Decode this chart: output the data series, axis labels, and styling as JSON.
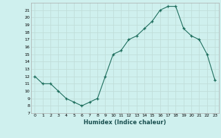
{
  "x": [
    0,
    1,
    2,
    3,
    4,
    5,
    6,
    7,
    8,
    9,
    10,
    11,
    12,
    13,
    14,
    15,
    16,
    17,
    18,
    19,
    20,
    21,
    22,
    23
  ],
  "y": [
    12,
    11,
    11,
    10,
    9,
    8.5,
    8,
    8.5,
    9,
    12,
    15,
    15.5,
    17,
    17.5,
    18.5,
    19.5,
    21,
    21.5,
    21.5,
    18.5,
    17.5,
    17,
    15,
    11.5
  ],
  "line_color": "#1a6b5a",
  "marker_color": "#1a6b5a",
  "bg_color": "#cff0ee",
  "grid_color": "#c0ddd9",
  "xlabel": "Humidex (Indice chaleur)",
  "ylim": [
    7,
    22
  ],
  "xlim": [
    -0.5,
    23.5
  ],
  "yticks": [
    7,
    8,
    9,
    10,
    11,
    12,
    13,
    14,
    15,
    16,
    17,
    18,
    19,
    20,
    21
  ],
  "xticks": [
    0,
    1,
    2,
    3,
    4,
    5,
    6,
    7,
    8,
    9,
    10,
    11,
    12,
    13,
    14,
    15,
    16,
    17,
    18,
    19,
    20,
    21,
    22,
    23
  ]
}
